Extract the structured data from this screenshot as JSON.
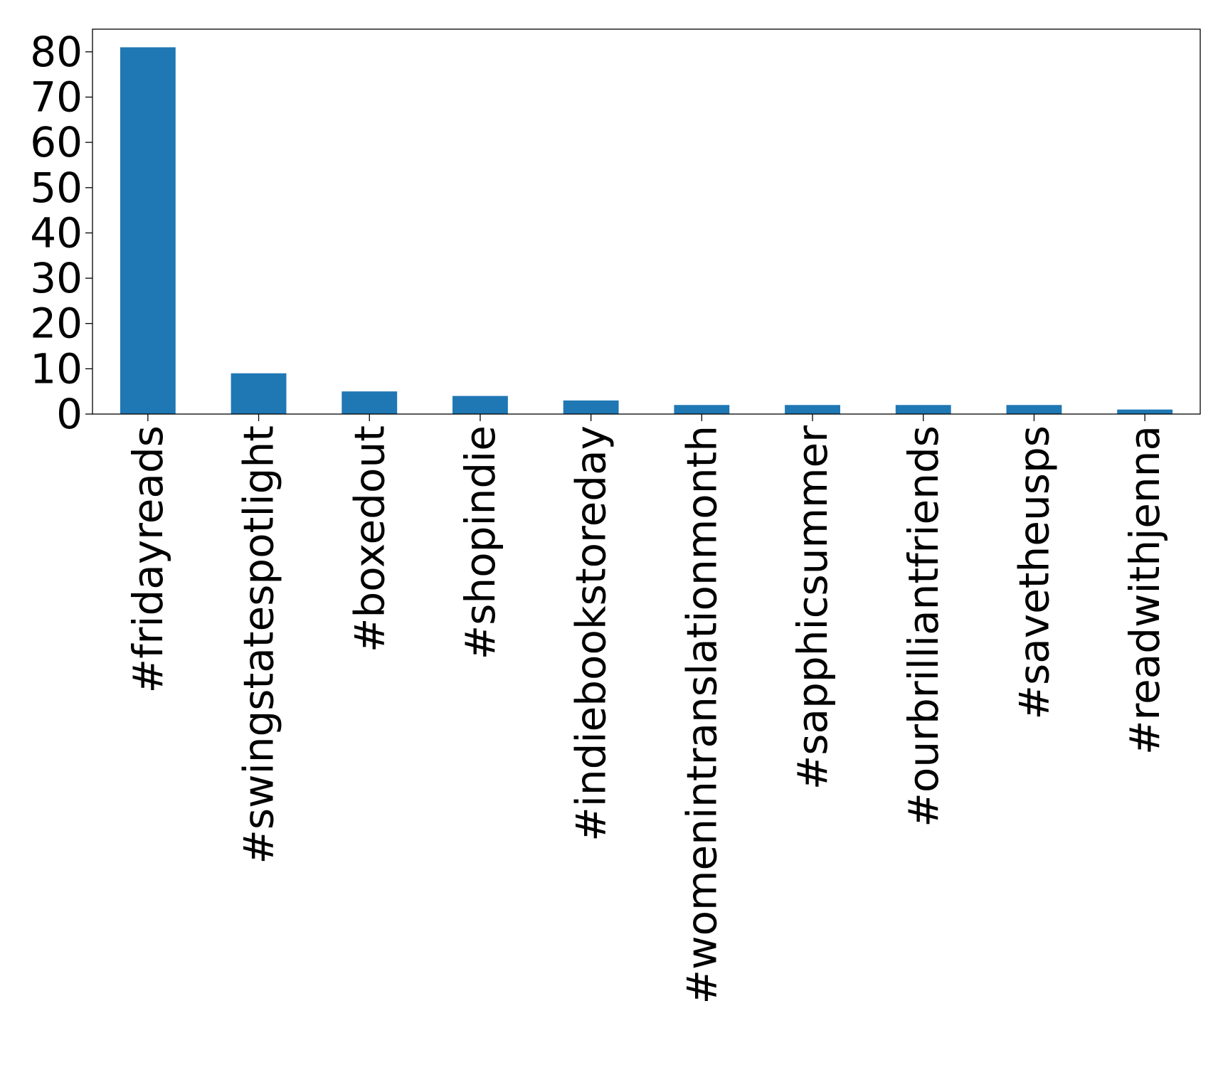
{
  "chart_data": {
    "type": "bar",
    "categories": [
      "#fridayreads",
      "#swingstatespotlight",
      "#boxedout",
      "#shopindie",
      "#indiebookstoreday",
      "#womenintranslationmonth",
      "#sapphicsummer",
      "#ourbrilliantfriends",
      "#savetheusps",
      "#readwithjenna"
    ],
    "values": [
      81,
      9,
      5,
      4,
      3,
      2,
      2,
      2,
      2,
      1
    ],
    "title": "",
    "xlabel": "",
    "ylabel": "",
    "ylim": [
      0,
      85
    ],
    "yticks": [
      0,
      10,
      20,
      30,
      40,
      50,
      60,
      70,
      80
    ],
    "bar_color": "#1f77b4",
    "grid": false,
    "legend": "none",
    "x_tick_rotation": "vertical"
  }
}
